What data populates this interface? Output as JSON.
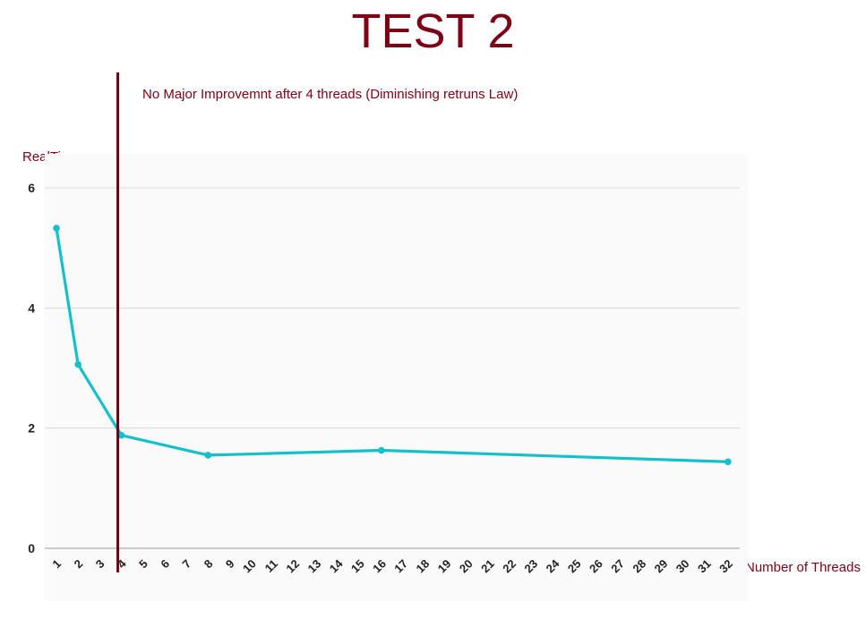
{
  "title": "TEST 2",
  "annotation": "No Major Improvemnt after 4 threads  (Diminishing retruns Law)",
  "colors": {
    "title": "#7d0015",
    "series": "#14c0cc",
    "marker_line": "#6b0010",
    "grid": "#d9d9d9",
    "plot_bg": "#fafafa"
  },
  "chart_data": {
    "type": "line",
    "xlabel": "Number of Threads",
    "ylabel": "RealTime",
    "categories": [
      "1",
      "2",
      "3",
      "4",
      "5",
      "6",
      "7",
      "8",
      "9",
      "10",
      "11",
      "12",
      "13",
      "14",
      "15",
      "16",
      "17",
      "18",
      "19",
      "20",
      "21",
      "22",
      "23",
      "24",
      "25",
      "26",
      "27",
      "28",
      "29",
      "30",
      "31",
      "32"
    ],
    "yticks": [
      "0",
      "2",
      "4",
      "6"
    ],
    "ylim": [
      0,
      6
    ],
    "grid": true,
    "series": [
      {
        "points": [
          {
            "x": 1,
            "y": 5.33
          },
          {
            "x": 2,
            "y": 3.06
          },
          {
            "x": 4,
            "y": 1.88
          },
          {
            "x": 8,
            "y": 1.55
          },
          {
            "x": 16,
            "y": 1.63
          },
          {
            "x": 32,
            "y": 1.44
          }
        ]
      }
    ],
    "vertical_marker_x": 4
  }
}
